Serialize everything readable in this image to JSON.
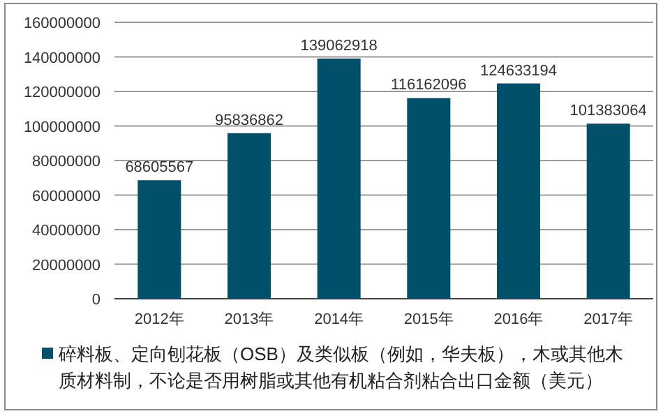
{
  "chart_data": {
    "type": "bar",
    "categories": [
      "2012年",
      "2013年",
      "2014年",
      "2015年",
      "2016年",
      "2017年"
    ],
    "series": [
      {
        "name": "碎料板、定向刨花板（OSB）及类似板（例如，华夫板），木或其他木质材料制，不论是否用树脂或其他有机粘合剂粘合出口金额（美元）",
        "color": "#00506a",
        "values": [
          68605567,
          95836862,
          139062918,
          116162096,
          124633194,
          101383064
        ]
      }
    ],
    "ylim": [
      0,
      160000000
    ],
    "yticks": [
      0,
      20000000,
      40000000,
      60000000,
      80000000,
      100000000,
      120000000,
      140000000,
      160000000
    ],
    "grid": "y",
    "legend": "bottom",
    "data_labels": true
  }
}
